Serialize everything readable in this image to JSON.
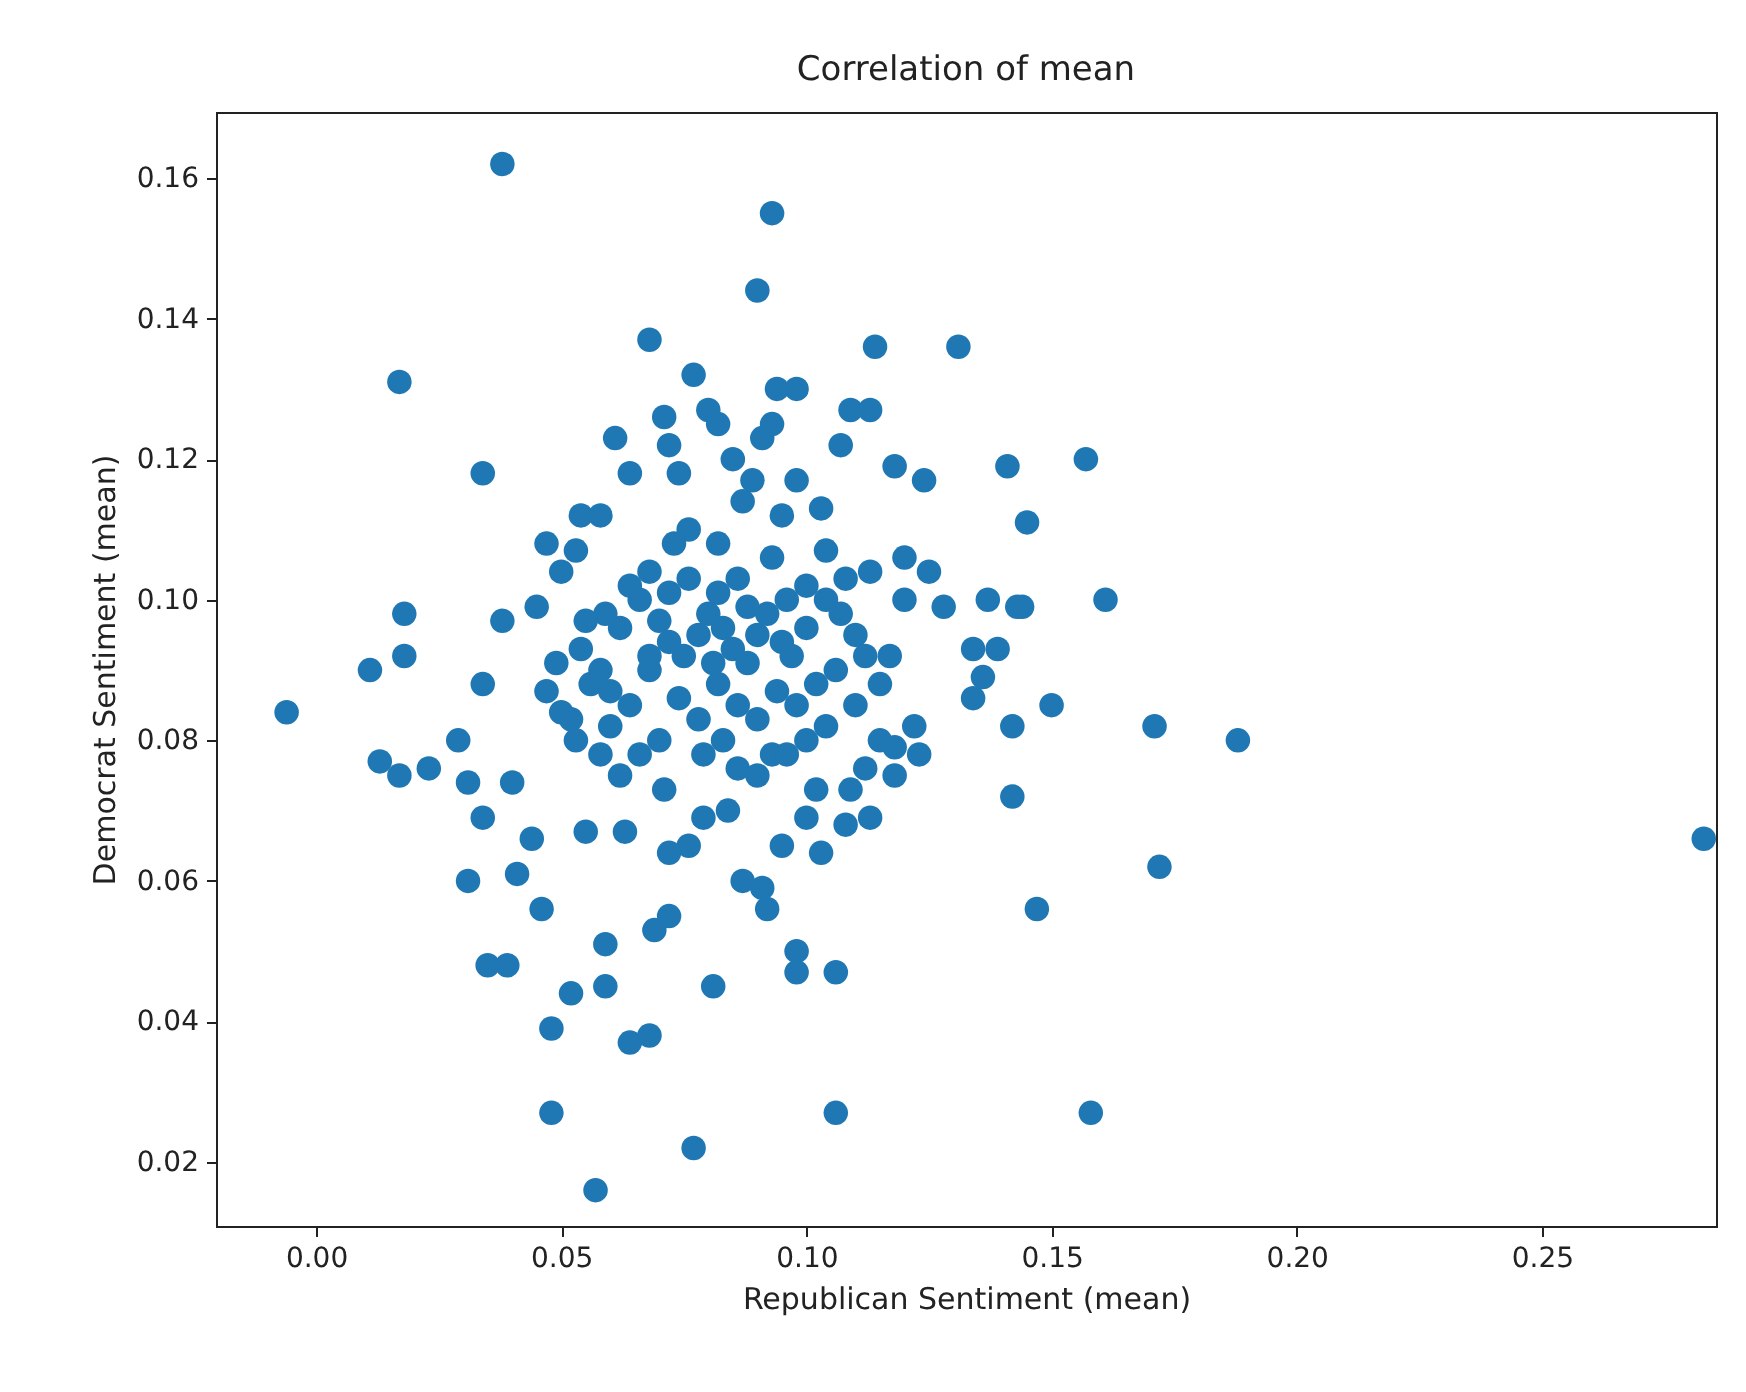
{
  "chart_data": {
    "type": "scatter",
    "title": "Correlation of mean",
    "xlabel": "Republican Sentiment (mean)",
    "ylabel": "Democrat Sentiment (mean)",
    "marker": "circle",
    "xlim": [
      -0.0204,
      0.2855
    ],
    "ylim": [
      0.0109,
      0.1694
    ],
    "xticks": [
      {
        "value": 0,
        "label": "0.00"
      },
      {
        "value": 0.05,
        "label": "0.05"
      },
      {
        "value": 0.1,
        "label": "0.10"
      },
      {
        "value": 0.15,
        "label": "0.15"
      },
      {
        "value": 0.2,
        "label": "0.20"
      },
      {
        "value": 0.25,
        "label": "0.25"
      }
    ],
    "yticks": [
      {
        "value": 0.02,
        "label": "0.02"
      },
      {
        "value": 0.04,
        "label": "0.04"
      },
      {
        "value": 0.06,
        "label": "0.06"
      },
      {
        "value": 0.08,
        "label": "0.08"
      },
      {
        "value": 0.1,
        "label": "0.10"
      },
      {
        "value": 0.12,
        "label": "0.12"
      },
      {
        "value": 0.14,
        "label": "0.14"
      },
      {
        "value": 0.16,
        "label": "0.16"
      }
    ],
    "series": [
      {
        "color": "#1f77b4",
        "x": [
          0.038,
          0.093,
          0.09,
          0.017,
          0.068,
          0.034,
          0.077,
          0.098,
          0.094,
          0.114,
          0.131,
          0.061,
          0.071,
          0.082,
          0.08,
          0.093,
          0.109,
          0.113,
          0.072,
          0.091,
          0.107,
          0.118,
          0.124,
          0.141,
          0.157,
          0.145,
          0.054,
          0.053,
          0.047,
          0.064,
          0.074,
          0.085,
          0.089,
          0.098,
          0.087,
          0.058,
          0.095,
          0.103,
          0.076,
          0.082,
          0.104,
          0.093,
          0.125,
          0.161,
          0.137,
          0.144,
          0.018,
          0.018,
          0.011,
          0.05,
          0.045,
          0.038,
          0.034,
          -0.006,
          0.013,
          0.017,
          0.023,
          0.029,
          0.031,
          0.034,
          0.031,
          0.04,
          0.041,
          0.044,
          0.046,
          0.035,
          0.039,
          0.052,
          0.048,
          0.048,
          0.057,
          0.064,
          0.068,
          0.059,
          0.059,
          0.055,
          0.063,
          0.069,
          0.072,
          0.081,
          0.077,
          0.106,
          0.158,
          0.147,
          0.172,
          0.171,
          0.188,
          0.283,
          0.15,
          0.142,
          0.142,
          0.136,
          0.134,
          0.139,
          0.134,
          0.143,
          0.123,
          0.118,
          0.118,
          0.113,
          0.108,
          0.109,
          0.106,
          0.098,
          0.098,
          0.092,
          0.091,
          0.087,
          0.095,
          0.1,
          0.102,
          0.103,
          0.076,
          0.072,
          0.079,
          0.084,
          0.086,
          0.09,
          0.093,
          0.071,
          0.062,
          0.058,
          0.053,
          0.05,
          0.047,
          0.049,
          0.054,
          0.056,
          0.06,
          0.064,
          0.068,
          0.062,
          0.066,
          0.07,
          0.072,
          0.075,
          0.078,
          0.08,
          0.083,
          0.085,
          0.088,
          0.09,
          0.092,
          0.095,
          0.097,
          0.1,
          0.104,
          0.107,
          0.11,
          0.112,
          0.115,
          0.117,
          0.12,
          0.113,
          0.12,
          0.108,
          0.1,
          0.096,
          0.086,
          0.082,
          0.076,
          0.072,
          0.068,
          0.064,
          0.059,
          0.055,
          0.074,
          0.078,
          0.082,
          0.086,
          0.09,
          0.094,
          0.098,
          0.102,
          0.106,
          0.11,
          0.104,
          0.1,
          0.096,
          0.083,
          0.079,
          0.07,
          0.066,
          0.081,
          0.088,
          0.073,
          0.068,
          0.058,
          0.052,
          0.06,
          0.128,
          0.122,
          0.115,
          0.112
        ],
        "values": [
          0.162,
          0.155,
          0.144,
          0.131,
          0.137,
          0.118,
          0.132,
          0.13,
          0.13,
          0.136,
          0.136,
          0.123,
          0.126,
          0.125,
          0.127,
          0.125,
          0.127,
          0.127,
          0.122,
          0.123,
          0.122,
          0.119,
          0.117,
          0.119,
          0.12,
          0.111,
          0.112,
          0.107,
          0.108,
          0.118,
          0.118,
          0.12,
          0.117,
          0.117,
          0.114,
          0.112,
          0.112,
          0.113,
          0.11,
          0.108,
          0.107,
          0.106,
          0.104,
          0.1,
          0.1,
          0.099,
          0.098,
          0.092,
          0.09,
          0.104,
          0.099,
          0.097,
          0.088,
          0.084,
          0.077,
          0.075,
          0.076,
          0.08,
          0.074,
          0.069,
          0.06,
          0.074,
          0.061,
          0.066,
          0.056,
          0.048,
          0.048,
          0.044,
          0.039,
          0.027,
          0.016,
          0.037,
          0.038,
          0.051,
          0.045,
          0.067,
          0.067,
          0.053,
          0.055,
          0.045,
          0.022,
          0.027,
          0.027,
          0.056,
          0.062,
          0.082,
          0.08,
          0.066,
          0.085,
          0.072,
          0.082,
          0.089,
          0.093,
          0.093,
          0.086,
          0.099,
          0.078,
          0.079,
          0.075,
          0.069,
          0.068,
          0.073,
          0.047,
          0.047,
          0.05,
          0.056,
          0.059,
          0.06,
          0.065,
          0.069,
          0.073,
          0.064,
          0.065,
          0.064,
          0.069,
          0.07,
          0.076,
          0.075,
          0.078,
          0.073,
          0.075,
          0.078,
          0.08,
          0.084,
          0.087,
          0.091,
          0.093,
          0.088,
          0.082,
          0.085,
          0.09,
          0.096,
          0.1,
          0.097,
          0.094,
          0.092,
          0.095,
          0.098,
          0.096,
          0.093,
          0.091,
          0.095,
          0.098,
          0.094,
          0.092,
          0.096,
          0.1,
          0.098,
          0.095,
          0.092,
          0.088,
          0.092,
          0.1,
          0.104,
          0.106,
          0.103,
          0.102,
          0.1,
          0.103,
          0.101,
          0.103,
          0.101,
          0.104,
          0.102,
          0.098,
          0.097,
          0.086,
          0.083,
          0.088,
          0.085,
          0.083,
          0.087,
          0.085,
          0.088,
          0.09,
          0.085,
          0.082,
          0.08,
          0.078,
          0.08,
          0.078,
          0.08,
          0.078,
          0.091,
          0.099,
          0.108,
          0.092,
          0.09,
          0.083,
          0.087,
          0.099,
          0.082,
          0.08,
          0.076
        ]
      }
    ]
  }
}
